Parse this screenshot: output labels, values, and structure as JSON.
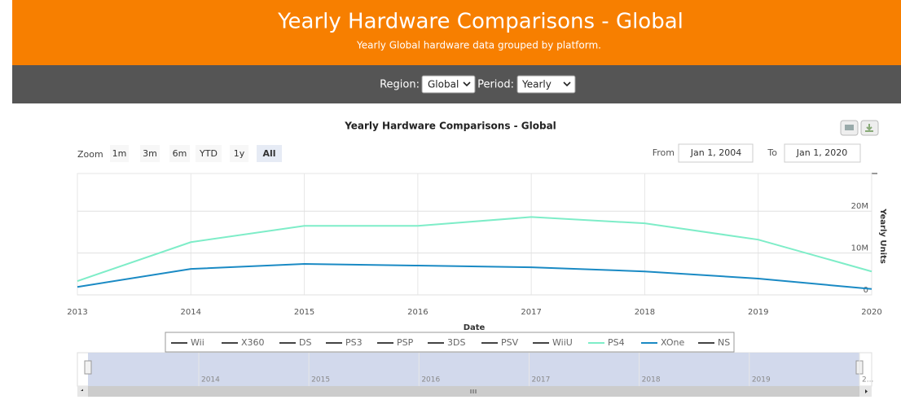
{
  "header": {
    "title": "Yearly Hardware Comparisons - Global",
    "subtitle": "Yearly Global hardware data grouped by platform."
  },
  "controls": {
    "region_label": "Region:",
    "region_value": "Global",
    "period_label": "Period:",
    "period_value": "Yearly"
  },
  "range_selector": {
    "zoom_label": "Zoom",
    "buttons": [
      "1m",
      "3m",
      "6m",
      "YTD",
      "1y",
      "All"
    ],
    "selected": "All",
    "from_label": "From",
    "from_value": "Jan 1, 2004",
    "to_label": "To",
    "to_value": "Jan 1, 2020"
  },
  "chart_data": {
    "type": "line",
    "title": "Yearly Hardware Comparisons - Global",
    "x_label": "Date",
    "y_label": "Yearly Units",
    "x": [
      2013,
      2014,
      2015,
      2016,
      2017,
      2018,
      2019,
      2020
    ],
    "xlim": [
      2013,
      2020
    ],
    "xticks": [
      2013,
      2014,
      2015,
      2016,
      2017,
      2018,
      2019,
      2020
    ],
    "ylim": [
      0,
      29000000
    ],
    "yticks": [
      0,
      {
        "value": 10000000,
        "label": "10M"
      },
      {
        "value": 20000000,
        "label": "20M"
      }
    ],
    "grid": true,
    "series": [
      {
        "name": "Wii",
        "color": "#444444",
        "values": [
          null,
          null,
          null,
          null,
          null,
          null,
          null,
          null
        ]
      },
      {
        "name": "X360",
        "color": "#444444",
        "values": [
          null,
          null,
          null,
          null,
          null,
          null,
          null,
          null
        ]
      },
      {
        "name": "DS",
        "color": "#444444",
        "values": [
          null,
          null,
          null,
          null,
          null,
          null,
          null,
          null
        ]
      },
      {
        "name": "PS3",
        "color": "#444444",
        "values": [
          null,
          null,
          null,
          null,
          null,
          null,
          null,
          null
        ]
      },
      {
        "name": "PSP",
        "color": "#444444",
        "values": [
          null,
          null,
          null,
          null,
          null,
          null,
          null,
          null
        ]
      },
      {
        "name": "3DS",
        "color": "#444444",
        "values": [
          null,
          null,
          null,
          null,
          null,
          null,
          null,
          null
        ]
      },
      {
        "name": "PSV",
        "color": "#444444",
        "values": [
          null,
          null,
          null,
          null,
          null,
          null,
          null,
          null
        ]
      },
      {
        "name": "WiiU",
        "color": "#444444",
        "values": [
          null,
          null,
          null,
          null,
          null,
          null,
          null,
          null
        ]
      },
      {
        "name": "PS4",
        "color": "#7eedc8",
        "values": [
          3300000,
          12600000,
          16500000,
          16500000,
          18600000,
          17100000,
          13200000,
          5600000
        ]
      },
      {
        "name": "XOne",
        "color": "#1a8ac4",
        "values": [
          1900000,
          6200000,
          7400000,
          7000000,
          6600000,
          5600000,
          3900000,
          1400000
        ]
      },
      {
        "name": "NS",
        "color": "#444444",
        "values": [
          null,
          null,
          null,
          null,
          null,
          null,
          null,
          null
        ]
      }
    ],
    "navigator": {
      "xticks": [
        2014,
        2015,
        2016,
        2017,
        2018,
        2019,
        {
          "value": 2020,
          "label": "2..."
        }
      ]
    }
  }
}
